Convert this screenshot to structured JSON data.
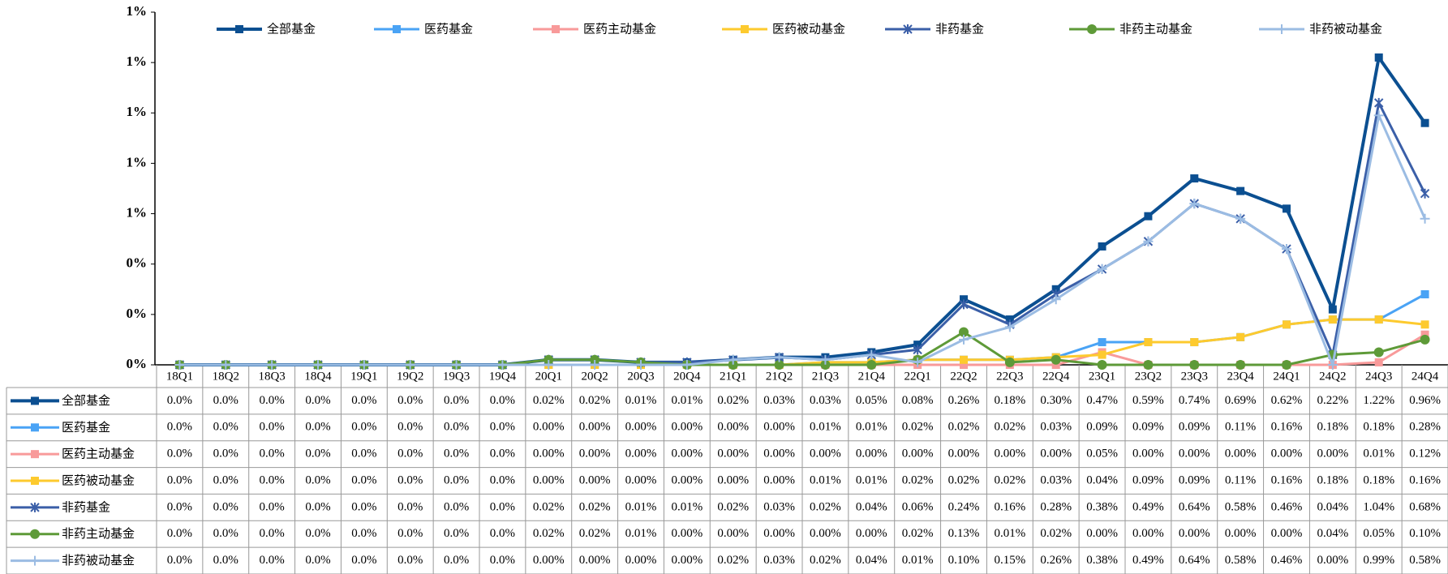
{
  "chart_data": {
    "type": "line",
    "categories": [
      "18Q1",
      "18Q2",
      "18Q3",
      "18Q4",
      "19Q1",
      "19Q2",
      "19Q3",
      "19Q4",
      "20Q1",
      "20Q2",
      "20Q3",
      "20Q4",
      "21Q1",
      "21Q2",
      "21Q3",
      "21Q4",
      "22Q1",
      "22Q2",
      "22Q3",
      "22Q4",
      "23Q1",
      "23Q2",
      "23Q3",
      "23Q4",
      "24Q1",
      "24Q2",
      "24Q3",
      "24Q4"
    ],
    "ylim": [
      0,
      1.4
    ],
    "yticks": [
      {
        "value": 0,
        "label": "0%"
      },
      {
        "value": 0.2,
        "label": "0%"
      },
      {
        "value": 0.4,
        "label": "0%"
      },
      {
        "value": 0.6,
        "label": "1%"
      },
      {
        "value": 0.8,
        "label": "1%"
      },
      {
        "value": 1.0,
        "label": "1%"
      },
      {
        "value": 1.2,
        "label": "1%"
      },
      {
        "value": 1.4,
        "label": "1%"
      }
    ],
    "legend": "top",
    "series": [
      {
        "name": "全部基金",
        "color": "#0b4f91",
        "marker": "square",
        "values": [
          0,
          0,
          0,
          0,
          0,
          0,
          0,
          0,
          0.02,
          0.02,
          0.01,
          0.01,
          0.02,
          0.03,
          0.03,
          0.05,
          0.08,
          0.26,
          0.18,
          0.3,
          0.47,
          0.59,
          0.74,
          0.69,
          0.62,
          0.22,
          1.22,
          0.96
        ],
        "value_labels": [
          "0.0%",
          "0.0%",
          "0.0%",
          "0.0%",
          "0.0%",
          "0.0%",
          "0.0%",
          "0.0%",
          "0.02%",
          "0.02%",
          "0.01%",
          "0.01%",
          "0.02%",
          "0.03%",
          "0.03%",
          "0.05%",
          "0.08%",
          "0.26%",
          "0.18%",
          "0.30%",
          "0.47%",
          "0.59%",
          "0.74%",
          "0.69%",
          "0.62%",
          "0.22%",
          "1.22%",
          "0.96%"
        ]
      },
      {
        "name": "医药基金",
        "color": "#4aa3f5",
        "marker": "square",
        "values": [
          0,
          0,
          0,
          0,
          0,
          0,
          0,
          0,
          0,
          0,
          0,
          0,
          0,
          0,
          0.01,
          0.01,
          0.02,
          0.02,
          0.02,
          0.03,
          0.09,
          0.09,
          0.09,
          0.11,
          0.16,
          0.18,
          0.18,
          0.28
        ],
        "value_labels": [
          "0.0%",
          "0.0%",
          "0.0%",
          "0.0%",
          "0.0%",
          "0.0%",
          "0.0%",
          "0.0%",
          "0.00%",
          "0.00%",
          "0.00%",
          "0.00%",
          "0.00%",
          "0.00%",
          "0.01%",
          "0.01%",
          "0.02%",
          "0.02%",
          "0.02%",
          "0.03%",
          "0.09%",
          "0.09%",
          "0.09%",
          "0.11%",
          "0.16%",
          "0.18%",
          "0.18%",
          "0.28%"
        ]
      },
      {
        "name": "医药主动基金",
        "color": "#f89a9a",
        "marker": "square",
        "values": [
          0,
          0,
          0,
          0,
          0,
          0,
          0,
          0,
          0,
          0,
          0,
          0,
          0,
          0,
          0,
          0,
          0,
          0,
          0,
          0,
          0.05,
          0,
          0,
          0,
          0,
          0,
          0.01,
          0.12
        ],
        "value_labels": [
          "0.0%",
          "0.0%",
          "0.0%",
          "0.0%",
          "0.0%",
          "0.0%",
          "0.0%",
          "0.0%",
          "0.00%",
          "0.00%",
          "0.00%",
          "0.00%",
          "0.00%",
          "0.00%",
          "0.00%",
          "0.00%",
          "0.00%",
          "0.00%",
          "0.00%",
          "0.00%",
          "0.05%",
          "0.00%",
          "0.00%",
          "0.00%",
          "0.00%",
          "0.00%",
          "0.01%",
          "0.12%"
        ]
      },
      {
        "name": "医药被动基金",
        "color": "#fdca2e",
        "marker": "square",
        "values": [
          0,
          0,
          0,
          0,
          0,
          0,
          0,
          0,
          0,
          0,
          0,
          0,
          0,
          0,
          0.01,
          0.01,
          0.02,
          0.02,
          0.02,
          0.03,
          0.04,
          0.09,
          0.09,
          0.11,
          0.16,
          0.18,
          0.18,
          0.16
        ],
        "value_labels": [
          "0.0%",
          "0.0%",
          "0.0%",
          "0.0%",
          "0.0%",
          "0.0%",
          "0.0%",
          "0.0%",
          "0.00%",
          "0.00%",
          "0.00%",
          "0.00%",
          "0.00%",
          "0.00%",
          "0.01%",
          "0.01%",
          "0.02%",
          "0.02%",
          "0.02%",
          "0.03%",
          "0.04%",
          "0.09%",
          "0.09%",
          "0.11%",
          "0.16%",
          "0.18%",
          "0.18%",
          "0.16%"
        ]
      },
      {
        "name": "非药基金",
        "color": "#3b5fa8",
        "marker": "star",
        "values": [
          0,
          0,
          0,
          0,
          0,
          0,
          0,
          0,
          0.02,
          0.02,
          0.01,
          0.01,
          0.02,
          0.03,
          0.02,
          0.04,
          0.06,
          0.24,
          0.16,
          0.28,
          0.38,
          0.49,
          0.64,
          0.58,
          0.46,
          0.04,
          1.04,
          0.68
        ],
        "value_labels": [
          "0.0%",
          "0.0%",
          "0.0%",
          "0.0%",
          "0.0%",
          "0.0%",
          "0.0%",
          "0.0%",
          "0.02%",
          "0.02%",
          "0.01%",
          "0.01%",
          "0.02%",
          "0.03%",
          "0.02%",
          "0.04%",
          "0.06%",
          "0.24%",
          "0.16%",
          "0.28%",
          "0.38%",
          "0.49%",
          "0.64%",
          "0.58%",
          "0.46%",
          "0.04%",
          "1.04%",
          "0.68%"
        ]
      },
      {
        "name": "非药主动基金",
        "color": "#5e9a38",
        "marker": "circle",
        "values": [
          0,
          0,
          0,
          0,
          0,
          0,
          0,
          0,
          0.02,
          0.02,
          0.01,
          0,
          0,
          0,
          0,
          0,
          0.02,
          0.13,
          0.01,
          0.02,
          0,
          0,
          0,
          0,
          0,
          0.04,
          0.05,
          0.1
        ],
        "value_labels": [
          "0.0%",
          "0.0%",
          "0.0%",
          "0.0%",
          "0.0%",
          "0.0%",
          "0.0%",
          "0.0%",
          "0.02%",
          "0.02%",
          "0.01%",
          "0.00%",
          "0.00%",
          "0.00%",
          "0.00%",
          "0.00%",
          "0.02%",
          "0.13%",
          "0.01%",
          "0.02%",
          "0.00%",
          "0.00%",
          "0.00%",
          "0.00%",
          "0.00%",
          "0.04%",
          "0.05%",
          "0.10%"
        ]
      },
      {
        "name": "非药被动基金",
        "color": "#9bbce3",
        "marker": "plus",
        "values": [
          0,
          0,
          0,
          0,
          0,
          0,
          0,
          0,
          0,
          0,
          0,
          0,
          0.02,
          0.03,
          0.02,
          0.04,
          0.01,
          0.1,
          0.15,
          0.26,
          0.38,
          0.49,
          0.64,
          0.58,
          0.46,
          0,
          0.99,
          0.58
        ],
        "value_labels": [
          "0.0%",
          "0.0%",
          "0.0%",
          "0.0%",
          "0.0%",
          "0.0%",
          "0.0%",
          "0.0%",
          "0.00%",
          "0.00%",
          "0.00%",
          "0.00%",
          "0.02%",
          "0.03%",
          "0.02%",
          "0.04%",
          "0.01%",
          "0.10%",
          "0.15%",
          "0.26%",
          "0.38%",
          "0.49%",
          "0.64%",
          "0.58%",
          "0.46%",
          "0.00%",
          "0.99%",
          "0.58%"
        ]
      }
    ]
  }
}
